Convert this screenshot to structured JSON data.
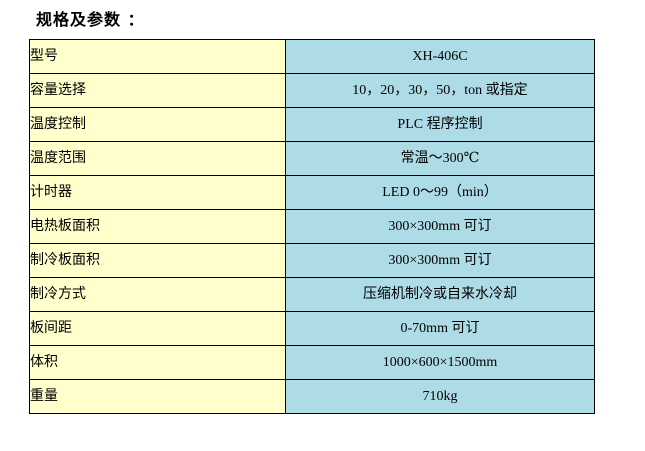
{
  "title": "规格及参数 ：",
  "colors": {
    "label_bg": "#FFFFCC",
    "value_bg": "#AEDCE6",
    "border": "#000000"
  },
  "table": {
    "rows": [
      {
        "label": "型号",
        "value": "XH-406C"
      },
      {
        "label": "容量选择",
        "value": "10，20，30，50，ton 或指定"
      },
      {
        "label": "温度控制",
        "value": "PLC 程序控制"
      },
      {
        "label": "温度范围",
        "value": "常温～300℃"
      },
      {
        "label": "计时器",
        "value": "LED 0～99（min）"
      },
      {
        "label": "电热板面积",
        "value": "300×300mm 可订"
      },
      {
        "label": "制冷板面积",
        "value": "300×300mm 可订"
      },
      {
        "label": "制冷方式",
        "value": "压缩机制冷或自来水冷却"
      },
      {
        "label": "板间距",
        "value": "0-70mm 可订"
      },
      {
        "label": "体积",
        "value": "1000×600×1500mm"
      },
      {
        "label": "重量",
        "value": "710kg"
      }
    ]
  }
}
